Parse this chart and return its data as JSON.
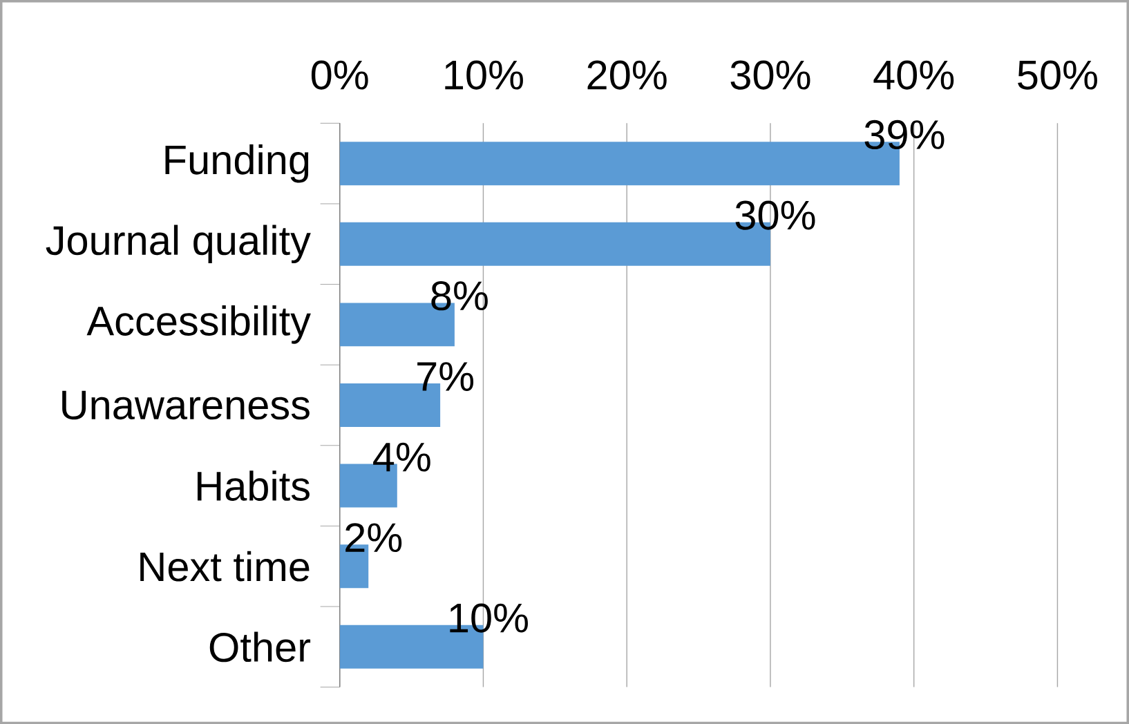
{
  "chart_data": {
    "type": "bar",
    "orientation": "horizontal",
    "categories": [
      "Funding",
      "Journal quality",
      "Accessibility",
      "Unawareness",
      "Habits",
      "Next time",
      "Other"
    ],
    "values": [
      39,
      30,
      8,
      7,
      4,
      2,
      10
    ],
    "value_labels": [
      "39%",
      "30%",
      "8%",
      "7%",
      "4%",
      "2%",
      "10%"
    ],
    "color": "#5b9bd5",
    "xlim": [
      0,
      50
    ],
    "xticks": [
      {
        "value": 0,
        "label": "0%"
      },
      {
        "value": 10,
        "label": "10%"
      },
      {
        "value": 20,
        "label": "20%"
      },
      {
        "value": 30,
        "label": "30%"
      },
      {
        "value": 40,
        "label": "40%"
      },
      {
        "value": 50,
        "label": "50%"
      }
    ],
    "grid": "x"
  }
}
